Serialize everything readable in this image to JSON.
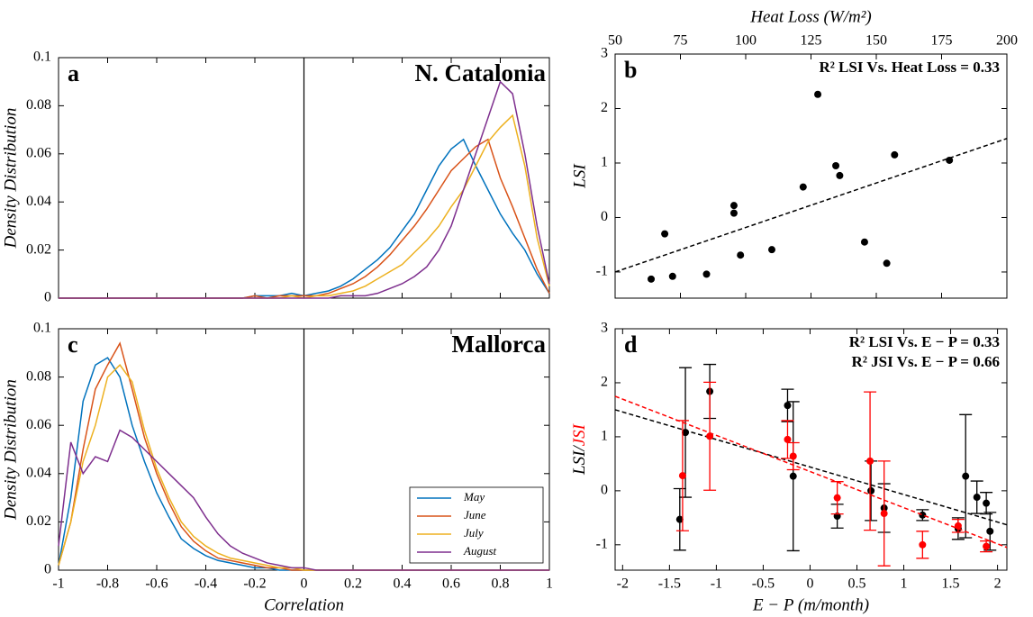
{
  "chart_data": [
    {
      "type": "line",
      "label": "a",
      "title": "N. Catalonia",
      "ylabel": "Density Distribution",
      "xaxis": "none",
      "xlim": [
        -1,
        1
      ],
      "ylim": [
        0,
        0.1
      ],
      "xticks": [
        -1,
        -0.8,
        -0.6,
        -0.4,
        -0.2,
        0,
        0.2,
        0.4,
        0.6,
        0.8,
        1
      ],
      "yticks": [
        0,
        0.02,
        0.04,
        0.06,
        0.08,
        0.1
      ],
      "vline": 0,
      "x": [
        -1,
        -0.95,
        -0.9,
        -0.85,
        -0.8,
        -0.75,
        -0.7,
        -0.65,
        -0.6,
        -0.55,
        -0.5,
        -0.45,
        -0.4,
        -0.35,
        -0.3,
        -0.25,
        -0.2,
        -0.15,
        -0.1,
        -0.05,
        0,
        0.05,
        0.1,
        0.15,
        0.2,
        0.25,
        0.3,
        0.35,
        0.4,
        0.45,
        0.5,
        0.55,
        0.6,
        0.65,
        0.7,
        0.75,
        0.8,
        0.85,
        0.9,
        0.95,
        1
      ],
      "series": [
        {
          "color": "#0072bd",
          "values": [
            0,
            0,
            0,
            0,
            0,
            0,
            0,
            0,
            0,
            0,
            0,
            0,
            0,
            0,
            0,
            0,
            0.001,
            0.001,
            0.001,
            0.002,
            0.001,
            0.002,
            0.003,
            0.005,
            0.008,
            0.012,
            0.016,
            0.021,
            0.028,
            0.035,
            0.045,
            0.055,
            0.062,
            0.066,
            0.055,
            0.045,
            0.035,
            0.027,
            0.02,
            0.01,
            0.002
          ]
        },
        {
          "color": "#d95319",
          "values": [
            0,
            0,
            0,
            0,
            0,
            0,
            0,
            0,
            0,
            0,
            0,
            0,
            0,
            0,
            0,
            0,
            0.001,
            0,
            0.001,
            0.001,
            0.001,
            0.001,
            0.002,
            0.004,
            0.006,
            0.009,
            0.013,
            0.018,
            0.024,
            0.03,
            0.037,
            0.045,
            0.053,
            0.058,
            0.063,
            0.066,
            0.05,
            0.038,
            0.025,
            0.012,
            0.002
          ]
        },
        {
          "color": "#edb120",
          "values": [
            0,
            0,
            0,
            0,
            0,
            0,
            0,
            0,
            0,
            0,
            0,
            0,
            0,
            0,
            0,
            0,
            0,
            0,
            0,
            0.001,
            0,
            0.001,
            0.001,
            0.002,
            0.003,
            0.005,
            0.008,
            0.011,
            0.014,
            0.019,
            0.024,
            0.03,
            0.038,
            0.045,
            0.055,
            0.065,
            0.071,
            0.076,
            0.055,
            0.025,
            0.005
          ]
        },
        {
          "color": "#7e2f8e",
          "values": [
            0,
            0,
            0,
            0,
            0,
            0,
            0,
            0,
            0,
            0,
            0,
            0,
            0,
            0,
            0,
            0,
            0,
            0,
            0,
            0,
            0,
            0,
            0,
            0.001,
            0.001,
            0.001,
            0.002,
            0.004,
            0.006,
            0.009,
            0.013,
            0.02,
            0.03,
            0.045,
            0.06,
            0.075,
            0.09,
            0.085,
            0.06,
            0.03,
            0.006
          ]
        }
      ]
    },
    {
      "type": "scatter",
      "label": "b",
      "xlabel": "Heat Loss (W/m²)",
      "ylabel": "LSI",
      "xaxis": "top",
      "xlim": [
        50,
        200
      ],
      "ylim": [
        -1.48,
        3
      ],
      "xticks": [
        50,
        75,
        100,
        125,
        150,
        175,
        200
      ],
      "yticks": [
        -1,
        0,
        1,
        2,
        3
      ],
      "annotations": [
        {
          "text": "R² LSI Vs. Heat Loss = 0.33",
          "color": "#000000"
        }
      ],
      "series": [
        {
          "color": "#000000",
          "x": [
            63.8,
            69,
            72,
            85,
            95.5,
            95.5,
            98,
            110,
            122,
            127.6,
            134.5,
            136,
            145.5,
            154,
            157,
            178
          ],
          "values": [
            -1.13,
            -0.3,
            -1.08,
            -1.04,
            0.22,
            0.08,
            -0.69,
            -0.59,
            0.56,
            2.26,
            0.95,
            0.77,
            -0.45,
            -0.84,
            1.15,
            1.05
          ],
          "trend": {
            "x": [
              50,
              200
            ],
            "values": [
              -1.0,
              1.45
            ]
          }
        }
      ]
    },
    {
      "type": "line",
      "label": "c",
      "title": "Mallorca",
      "xlabel": "Correlation",
      "ylabel": "Density Distribution",
      "xaxis": "bottom",
      "legend": "lower right",
      "xlim": [
        -1,
        1
      ],
      "ylim": [
        0,
        0.1
      ],
      "xticks": [
        -1,
        -0.8,
        -0.6,
        -0.4,
        -0.2,
        0,
        0.2,
        0.4,
        0.6,
        0.8,
        1
      ],
      "yticks": [
        0,
        0.02,
        0.04,
        0.06,
        0.08,
        0.1
      ],
      "vline": 0,
      "x": [
        -1,
        -0.95,
        -0.9,
        -0.85,
        -0.8,
        -0.75,
        -0.7,
        -0.65,
        -0.6,
        -0.55,
        -0.5,
        -0.45,
        -0.4,
        -0.35,
        -0.3,
        -0.25,
        -0.2,
        -0.15,
        -0.1,
        -0.05,
        0,
        0.05,
        0.1,
        0.15,
        0.2,
        0.25,
        0.3,
        0.35,
        0.4,
        0.45,
        0.5,
        0.55,
        0.6,
        0.65,
        0.7,
        0.75,
        0.8,
        0.85,
        0.9,
        0.95,
        1
      ],
      "series": [
        {
          "name": "May",
          "color": "#0072bd",
          "values": [
            0.002,
            0.03,
            0.07,
            0.085,
            0.088,
            0.08,
            0.06,
            0.045,
            0.032,
            0.022,
            0.013,
            0.009,
            0.006,
            0.004,
            0.003,
            0.002,
            0.001,
            0.001,
            0,
            0,
            0,
            0,
            0,
            0,
            0,
            0,
            0,
            0,
            0,
            0,
            0,
            0,
            0,
            0,
            0,
            0,
            0,
            0,
            0,
            0,
            0
          ]
        },
        {
          "name": "June",
          "color": "#d95319",
          "values": [
            0.002,
            0.02,
            0.05,
            0.075,
            0.085,
            0.094,
            0.075,
            0.055,
            0.04,
            0.028,
            0.018,
            0.012,
            0.008,
            0.005,
            0.004,
            0.003,
            0.002,
            0.001,
            0.001,
            0,
            0,
            0,
            0,
            0,
            0,
            0,
            0,
            0,
            0,
            0,
            0,
            0,
            0,
            0,
            0,
            0,
            0,
            0,
            0,
            0,
            0
          ]
        },
        {
          "name": "July",
          "color": "#edb120",
          "values": [
            0.002,
            0.02,
            0.045,
            0.06,
            0.08,
            0.085,
            0.078,
            0.058,
            0.042,
            0.03,
            0.02,
            0.014,
            0.01,
            0.007,
            0.005,
            0.004,
            0.003,
            0.002,
            0.001,
            0.001,
            0,
            0,
            0,
            0,
            0,
            0,
            0,
            0,
            0,
            0,
            0,
            0,
            0,
            0,
            0,
            0,
            0,
            0,
            0,
            0,
            0
          ]
        },
        {
          "name": "August",
          "color": "#7e2f8e",
          "values": [
            0.01,
            0.053,
            0.04,
            0.047,
            0.045,
            0.058,
            0.055,
            0.05,
            0.045,
            0.04,
            0.035,
            0.03,
            0.022,
            0.015,
            0.01,
            0.007,
            0.005,
            0.003,
            0.002,
            0.001,
            0.001,
            0,
            0,
            0,
            0,
            0,
            0,
            0,
            0,
            0,
            0,
            0,
            0,
            0,
            0,
            0,
            0,
            0,
            0,
            0,
            0
          ]
        }
      ]
    },
    {
      "type": "errorbar",
      "label": "d",
      "xlabel": "E − P (m/month)",
      "ylabel": [
        {
          "text": "LSI/",
          "color": "#000000"
        },
        {
          "text": "JSI",
          "color": "#ff0000"
        }
      ],
      "xaxis": "bottom",
      "xlim": [
        -2.08,
        2.1
      ],
      "ylim": [
        -1.47,
        3
      ],
      "xticks": [
        -2,
        -1.5,
        -1,
        -0.5,
        0,
        0.5,
        1,
        1.5,
        2
      ],
      "yticks": [
        -1,
        0,
        1,
        2,
        3
      ],
      "annotations": [
        {
          "text": "R² LSI Vs. E − P = 0.33",
          "color": "#000000"
        },
        {
          "text": "R² JSI Vs. E − P = 0.66",
          "color": "#ff0000"
        }
      ],
      "series": [
        {
          "color": "#000000",
          "x": [
            -1.39,
            -1.33,
            -1.07,
            -0.24,
            -0.18,
            0.29,
            0.65,
            0.79,
            1.2,
            1.58,
            1.66,
            1.78,
            1.88,
            1.92
          ],
          "values": [
            -0.53,
            1.08,
            1.84,
            1.58,
            0.27,
            -0.47,
            0,
            -0.32,
            -0.45,
            -0.7,
            0.27,
            -0.12,
            -0.23,
            -0.75
          ],
          "errors": [
            0.57,
            1.2,
            0.5,
            0.3,
            1.38,
            0.22,
            0.55,
            0.45,
            0.1,
            0.2,
            1.14,
            0.3,
            0.2,
            0.35
          ],
          "trend": {
            "x": [
              -2.08,
              2.1
            ],
            "values": [
              1.5,
              -0.63
            ]
          }
        },
        {
          "color": "#ff0000",
          "x": [
            -1.36,
            -1.07,
            -0.24,
            -0.18,
            0.29,
            0.64,
            0.79,
            1.2,
            1.58,
            1.88
          ],
          "values": [
            0.28,
            1.01,
            0.95,
            0.64,
            -0.13,
            0.55,
            -0.42,
            -1.0,
            -0.65,
            -1.03
          ],
          "errors": [
            1.02,
            1.0,
            0.35,
            0.25,
            0.3,
            1.28,
            0.97,
            0.25,
            0.12,
            0.1
          ],
          "trend": {
            "x": [
              -2.08,
              2.1
            ],
            "values": [
              1.75,
              -1.05
            ]
          }
        }
      ]
    }
  ]
}
